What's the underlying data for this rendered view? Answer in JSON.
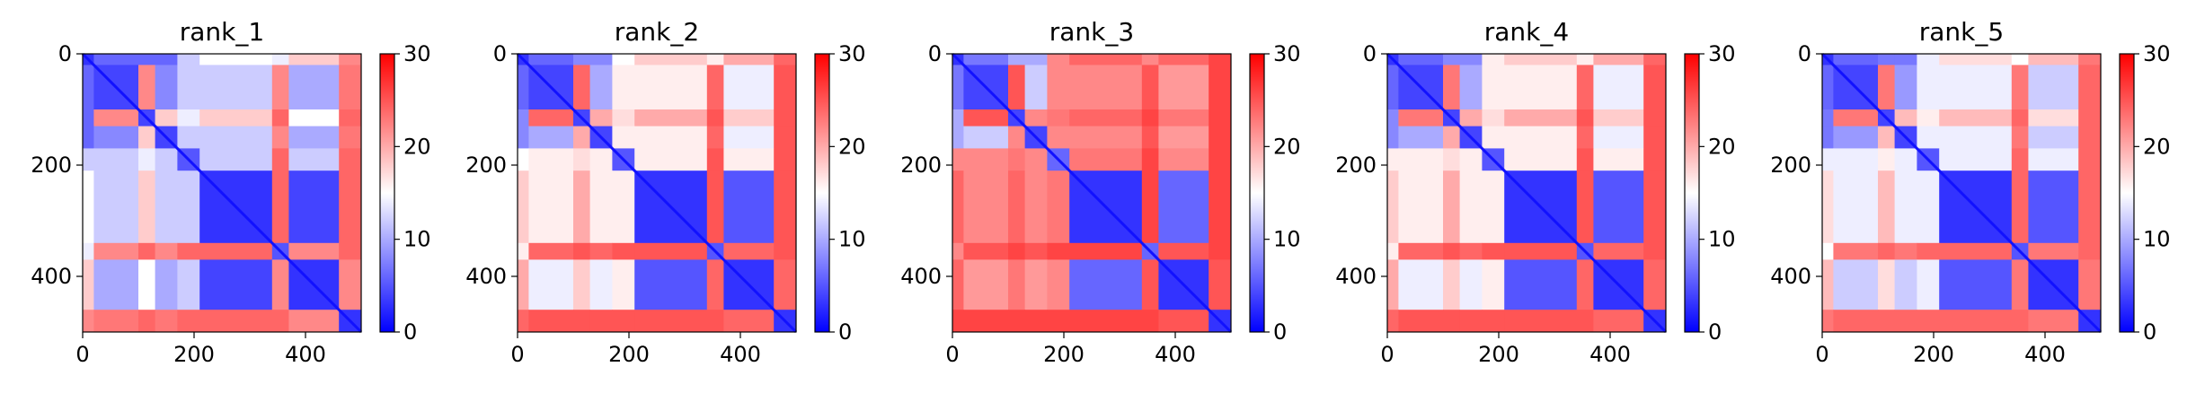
{
  "colormap": {
    "name": "bwr",
    "low": "#0000ff",
    "mid": "#ffffff",
    "high": "#ff0000",
    "vmin": 0,
    "vmax": 30
  },
  "chart_data": [
    {
      "type": "heatmap",
      "title": "rank_1",
      "xlim": [
        0,
        500
      ],
      "ylim": [
        500,
        0
      ],
      "x_ticks": [
        0,
        200,
        400
      ],
      "y_ticks": [
        0,
        200,
        400
      ],
      "colorbar_ticks": [
        0,
        10,
        20,
        30
      ],
      "block_boundaries": [
        20,
        100,
        130,
        170,
        210,
        340,
        370,
        460,
        500
      ],
      "block_cells": [
        [
          3,
          6,
          6,
          6,
          12,
          15,
          14,
          18,
          22
        ],
        [
          6,
          4,
          22,
          8,
          12,
          12,
          22,
          10,
          23
        ],
        [
          6,
          22,
          4,
          18,
          14,
          18,
          24,
          15,
          24
        ],
        [
          6,
          8,
          18,
          4,
          12,
          12,
          22,
          10,
          23
        ],
        [
          12,
          12,
          14,
          12,
          5,
          12,
          24,
          12,
          24
        ],
        [
          15,
          12,
          18,
          12,
          12,
          3,
          24,
          4,
          24
        ],
        [
          14,
          22,
          24,
          22,
          24,
          24,
          5,
          22,
          24
        ],
        [
          18,
          10,
          15,
          10,
          12,
          4,
          22,
          3,
          22
        ],
        [
          22,
          23,
          24,
          23,
          24,
          24,
          24,
          22,
          3
        ]
      ]
    },
    {
      "type": "heatmap",
      "title": "rank_2",
      "xlim": [
        0,
        500
      ],
      "ylim": [
        500,
        0
      ],
      "x_ticks": [
        0,
        200,
        400
      ],
      "y_ticks": [
        0,
        200,
        400
      ],
      "colorbar_ticks": [
        0,
        10,
        20,
        30
      ],
      "block_boundaries": [
        20,
        100,
        130,
        170,
        210,
        340,
        370,
        460,
        500
      ],
      "block_cells": [
        [
          3,
          6,
          8,
          8,
          15,
          18,
          16,
          20,
          24
        ],
        [
          6,
          4,
          24,
          10,
          16,
          16,
          24,
          14,
          25
        ],
        [
          8,
          24,
          4,
          20,
          17,
          20,
          25,
          18,
          25
        ],
        [
          8,
          10,
          20,
          4,
          16,
          16,
          24,
          14,
          25
        ],
        [
          15,
          16,
          17,
          16,
          5,
          16,
          25,
          16,
          25
        ],
        [
          18,
          16,
          20,
          16,
          16,
          3,
          25,
          5,
          25
        ],
        [
          16,
          24,
          25,
          24,
          25,
          25,
          5,
          24,
          25
        ],
        [
          20,
          14,
          18,
          14,
          16,
          5,
          24,
          3,
          24
        ],
        [
          24,
          25,
          25,
          25,
          25,
          25,
          25,
          24,
          3
        ]
      ]
    },
    {
      "type": "heatmap",
      "title": "rank_3",
      "xlim": [
        0,
        500
      ],
      "ylim": [
        500,
        0
      ],
      "x_ticks": [
        0,
        200,
        400
      ],
      "y_ticks": [
        0,
        200,
        400
      ],
      "colorbar_ticks": [
        0,
        10,
        20,
        30
      ],
      "block_boundaries": [
        20,
        100,
        130,
        170,
        210,
        340,
        370,
        460,
        500
      ],
      "block_cells": [
        [
          3,
          7,
          10,
          10,
          22,
          24,
          22,
          24,
          26
        ],
        [
          7,
          4,
          25,
          12,
          22,
          22,
          25,
          21,
          26
        ],
        [
          10,
          25,
          4,
          22,
          23,
          24,
          26,
          23,
          26
        ],
        [
          10,
          12,
          22,
          4,
          22,
          22,
          25,
          21,
          26
        ],
        [
          22,
          22,
          23,
          22,
          6,
          23,
          26,
          22,
          26
        ],
        [
          24,
          22,
          24,
          22,
          23,
          3,
          26,
          6,
          26
        ],
        [
          22,
          25,
          26,
          25,
          26,
          26,
          6,
          25,
          26
        ],
        [
          24,
          21,
          23,
          21,
          22,
          6,
          25,
          3,
          25
        ],
        [
          26,
          26,
          26,
          26,
          26,
          26,
          26,
          25,
          3
        ]
      ]
    },
    {
      "type": "heatmap",
      "title": "rank_4",
      "xlim": [
        0,
        500
      ],
      "ylim": [
        500,
        0
      ],
      "x_ticks": [
        0,
        200,
        400
      ],
      "y_ticks": [
        0,
        200,
        400
      ],
      "colorbar_ticks": [
        0,
        10,
        20,
        30
      ],
      "block_boundaries": [
        20,
        100,
        130,
        170,
        210,
        340,
        370,
        460,
        500
      ],
      "block_cells": [
        [
          3,
          6,
          8,
          8,
          16,
          18,
          16,
          20,
          24
        ],
        [
          6,
          4,
          23,
          10,
          16,
          16,
          24,
          14,
          25
        ],
        [
          8,
          23,
          4,
          20,
          17,
          20,
          25,
          18,
          25
        ],
        [
          8,
          10,
          20,
          4,
          16,
          16,
          24,
          14,
          25
        ],
        [
          16,
          16,
          17,
          16,
          5,
          16,
          25,
          16,
          25
        ],
        [
          18,
          16,
          20,
          16,
          16,
          3,
          25,
          5,
          25
        ],
        [
          16,
          24,
          25,
          24,
          25,
          25,
          5,
          24,
          25
        ],
        [
          20,
          14,
          18,
          14,
          16,
          5,
          24,
          3,
          24
        ],
        [
          24,
          25,
          25,
          25,
          25,
          25,
          25,
          24,
          3
        ]
      ]
    },
    {
      "type": "heatmap",
      "title": "rank_5",
      "xlim": [
        0,
        500
      ],
      "ylim": [
        500,
        0
      ],
      "x_ticks": [
        0,
        200,
        400
      ],
      "y_ticks": [
        0,
        200,
        400
      ],
      "colorbar_ticks": [
        0,
        10,
        20,
        30
      ],
      "block_boundaries": [
        20,
        100,
        130,
        170,
        210,
        340,
        370,
        460,
        500
      ],
      "block_cells": [
        [
          3,
          6,
          7,
          7,
          14,
          17,
          15,
          19,
          23
        ],
        [
          6,
          4,
          23,
          9,
          14,
          14,
          23,
          12,
          24
        ],
        [
          7,
          23,
          4,
          19,
          16,
          19,
          24,
          17,
          24
        ],
        [
          7,
          9,
          19,
          4,
          14,
          14,
          23,
          12,
          24
        ],
        [
          14,
          14,
          16,
          14,
          5,
          14,
          24,
          14,
          24
        ],
        [
          17,
          14,
          19,
          14,
          14,
          3,
          24,
          5,
          24
        ],
        [
          15,
          23,
          24,
          23,
          24,
          24,
          5,
          23,
          24
        ],
        [
          19,
          12,
          17,
          12,
          14,
          5,
          23,
          3,
          23
        ],
        [
          23,
          24,
          24,
          24,
          24,
          24,
          24,
          23,
          3
        ]
      ]
    }
  ]
}
